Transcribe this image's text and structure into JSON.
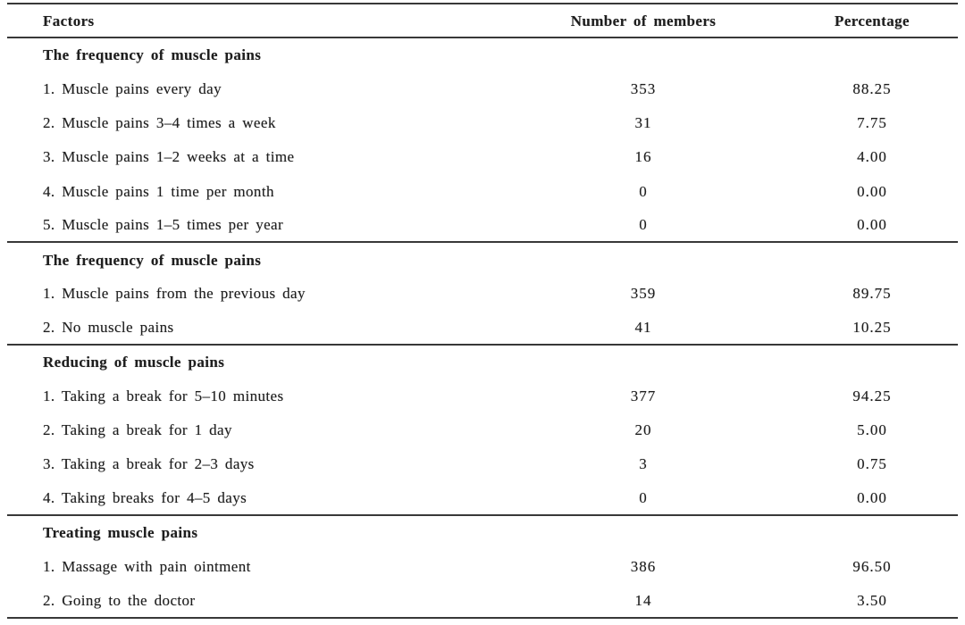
{
  "colors": {
    "background": "#ffffff",
    "text": "#1e1e1e",
    "rule": "#383838"
  },
  "table": {
    "columns": {
      "factors": "Factors",
      "members": "Number of members",
      "percentage": "Percentage"
    },
    "sections": [
      {
        "header": "The frequency of muscle pains",
        "rows": [
          {
            "factor": "1. Muscle pains every day",
            "members": "353",
            "percentage": "88.25"
          },
          {
            "factor": "2. Muscle pains 3–4 times a week",
            "members": "31",
            "percentage": "7.75"
          },
          {
            "factor": "3. Muscle pains 1–2 weeks at a time",
            "members": "16",
            "percentage": "4.00"
          },
          {
            "factor": "4. Muscle pains 1 time per month",
            "members": "0",
            "percentage": "0.00"
          },
          {
            "factor": "5. Muscle pains 1–5 times per year",
            "members": "0",
            "percentage": "0.00"
          }
        ]
      },
      {
        "header": "The frequency of muscle pains",
        "rows": [
          {
            "factor": "1. Muscle pains from the previous day",
            "members": "359",
            "percentage": "89.75"
          },
          {
            "factor": "2. No muscle pains",
            "members": "41",
            "percentage": "10.25"
          }
        ]
      },
      {
        "header": "Reducing of muscle pains",
        "rows": [
          {
            "factor": "1. Taking a break for 5–10 minutes",
            "members": "377",
            "percentage": "94.25"
          },
          {
            "factor": "2. Taking a break for 1 day",
            "members": "20",
            "percentage": "5.00"
          },
          {
            "factor": "3. Taking a break for 2–3 days",
            "members": "3",
            "percentage": "0.75"
          },
          {
            "factor": "4. Taking breaks for 4–5 days",
            "members": "0",
            "percentage": "0.00"
          }
        ]
      },
      {
        "header": "Treating muscle pains",
        "rows": [
          {
            "factor": "1. Massage with pain ointment",
            "members": "386",
            "percentage": "96.50"
          },
          {
            "factor": "2. Going to the doctor",
            "members": "14",
            "percentage": "3.50"
          }
        ]
      }
    ]
  }
}
